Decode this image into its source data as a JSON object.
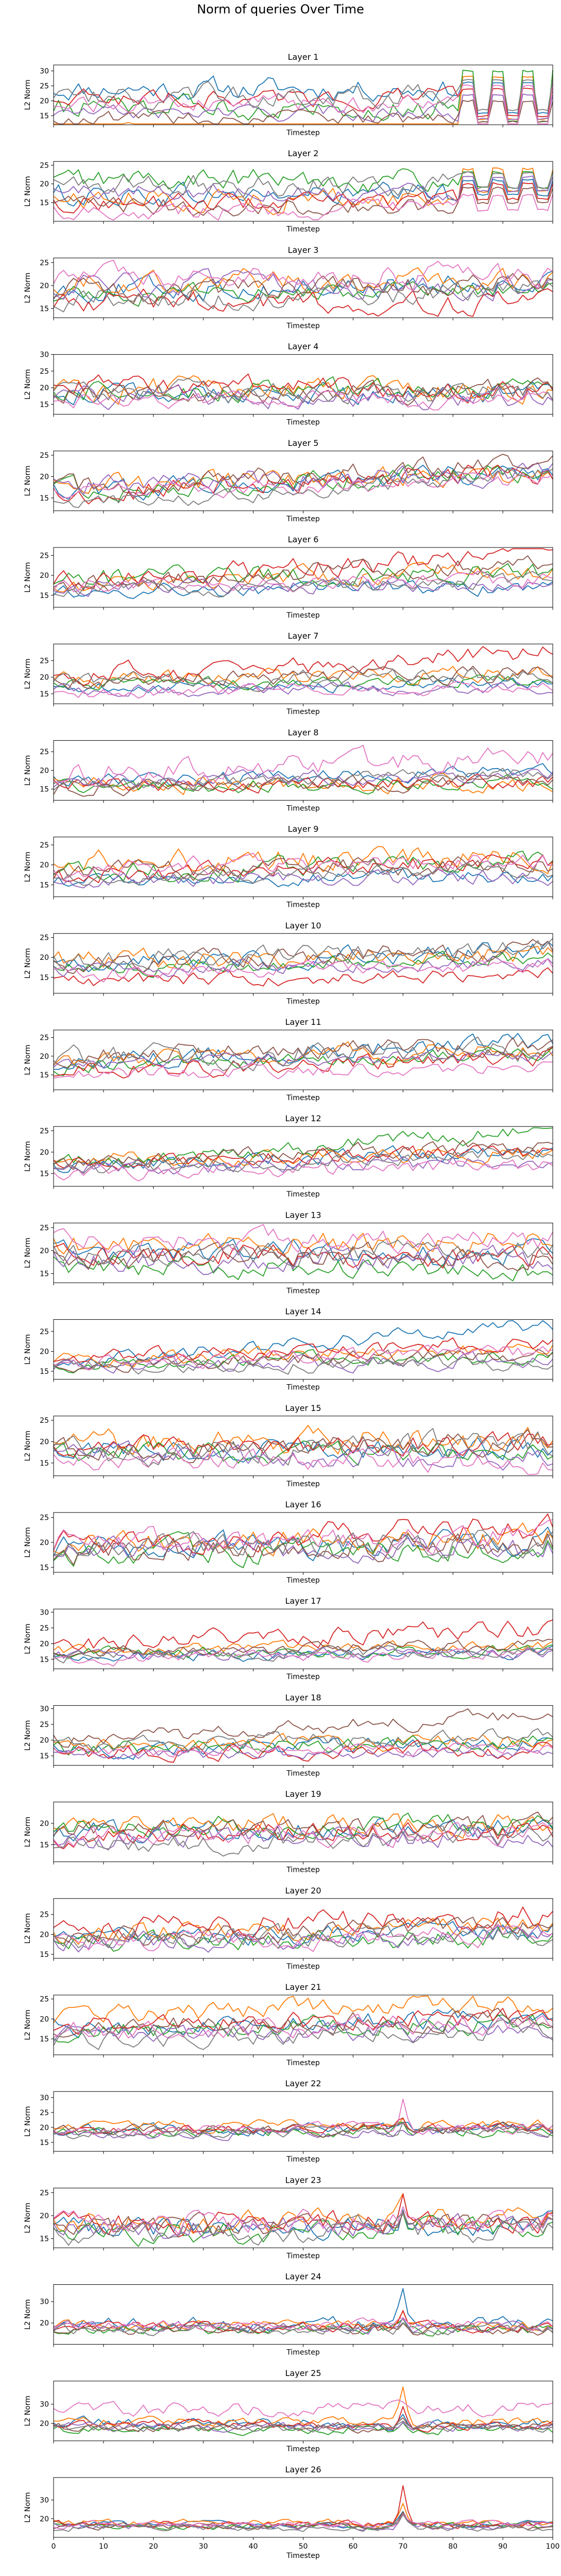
{
  "figure": {
    "suptitle": "Norm of queries Over Time",
    "xlabel": "Timestep",
    "ylabel": "L2 Norm"
  },
  "colors": [
    "#1f77b4",
    "#ff7f0e",
    "#2ca02c",
    "#d62728",
    "#9467bd",
    "#8c564b",
    "#e377c2",
    "#7f7f7f"
  ],
  "chart_data": [
    {
      "type": "line",
      "title": "Layer 1",
      "xlabel": "Timestep",
      "ylabel": "L2 Norm",
      "xlim": [
        0,
        100
      ],
      "ylim": [
        12,
        32
      ],
      "yticks": [
        15,
        20,
        25,
        30
      ],
      "base": [
        24,
        10,
        18,
        21,
        16,
        14,
        19,
        22
      ],
      "amp": [
        3,
        2,
        3,
        2.5,
        2,
        2,
        2.5,
        3
      ],
      "late": {
        "start": 82,
        "period": 6,
        "high": [
          26,
          28,
          30,
          24,
          22,
          20,
          25,
          27
        ],
        "low": [
          16,
          14,
          13,
          15,
          14,
          13,
          12,
          17
        ]
      }
    },
    {
      "type": "line",
      "title": "Layer 2",
      "xlabel": "Timestep",
      "ylabel": "L2 Norm",
      "xlim": [
        0,
        100
      ],
      "ylim": [
        10,
        26
      ],
      "yticks": [
        15,
        20,
        25
      ],
      "base": [
        17,
        16,
        21,
        15,
        18,
        14,
        13,
        20
      ],
      "amp": [
        2.5,
        2.5,
        2.5,
        2,
        2,
        2,
        2,
        2.5
      ],
      "late": {
        "start": 82,
        "period": 6,
        "high": [
          21,
          24,
          23,
          20,
          22,
          19,
          17,
          23
        ],
        "low": [
          17,
          18,
          19,
          16,
          18,
          15,
          13,
          19
        ]
      }
    },
    {
      "type": "line",
      "title": "Layer 3",
      "xlabel": "Timestep",
      "ylabel": "L2 Norm",
      "xlim": [
        0,
        100
      ],
      "ylim": [
        13,
        26
      ],
      "yticks": [
        15,
        20,
        25
      ],
      "base": [
        19,
        21,
        18,
        17,
        20,
        19,
        22,
        17
      ],
      "amp": [
        2,
        2,
        1.5,
        2,
        2,
        2,
        2,
        2
      ],
      "trend": [
        1,
        0,
        1,
        -1,
        0,
        1,
        0,
        2
      ]
    },
    {
      "type": "line",
      "title": "Layer 4",
      "xlabel": "Timestep",
      "ylabel": "L2 Norm",
      "xlim": [
        0,
        100
      ],
      "ylim": [
        12,
        30
      ],
      "yticks": [
        15,
        20,
        25,
        30
      ],
      "base": [
        18,
        20,
        19,
        21,
        17,
        18,
        16,
        19
      ],
      "amp": [
        2.5,
        3,
        2.5,
        2.5,
        2.5,
        2.5,
        2,
        2.5
      ],
      "trend": [
        0,
        -1,
        0,
        -2,
        0,
        1,
        0,
        -1
      ]
    },
    {
      "type": "line",
      "title": "Layer 5",
      "xlabel": "Timestep",
      "ylabel": "L2 Norm",
      "xlim": [
        0,
        100
      ],
      "ylim": [
        12,
        26
      ],
      "yticks": [
        15,
        20,
        25
      ],
      "base": [
        17,
        18,
        17,
        16,
        18,
        17,
        16,
        13
      ],
      "amp": [
        2,
        2,
        2,
        2,
        2,
        2,
        1.5,
        1.5
      ],
      "trend": [
        4,
        3,
        4,
        5,
        3,
        6,
        3,
        8
      ]
    },
    {
      "type": "line",
      "title": "Layer 6",
      "xlabel": "Timestep",
      "ylabel": "L2 Norm",
      "xlim": [
        0,
        100
      ],
      "ylim": [
        12,
        27
      ],
      "yticks": [
        15,
        20,
        25
      ],
      "base": [
        16,
        18,
        19,
        19,
        17,
        18,
        17,
        16
      ],
      "amp": [
        1.5,
        2,
        2,
        2,
        1.5,
        2,
        1.5,
        1.5
      ],
      "trend": [
        1,
        3,
        2,
        6,
        1,
        5,
        2,
        3
      ]
    },
    {
      "type": "line",
      "title": "Layer 7",
      "xlabel": "Timestep",
      "ylabel": "L2 Norm",
      "xlim": [
        0,
        100
      ],
      "ylim": [
        12,
        30
      ],
      "yticks": [
        15,
        20,
        25
      ],
      "base": [
        17,
        19,
        18,
        20,
        16,
        19,
        15,
        18
      ],
      "amp": [
        1.5,
        2,
        1.5,
        2.5,
        1.5,
        2,
        1.5,
        2
      ],
      "trend": [
        1,
        2,
        1,
        8,
        1,
        2,
        2,
        3
      ]
    },
    {
      "type": "line",
      "title": "Layer 8",
      "xlabel": "Timestep",
      "ylabel": "L2 Norm",
      "xlim": [
        0,
        100
      ],
      "ylim": [
        12,
        28
      ],
      "yticks": [
        15,
        20,
        25
      ],
      "base": [
        17,
        16,
        15,
        16,
        17,
        15,
        19,
        16
      ],
      "amp": [
        1.5,
        2,
        1.5,
        1.5,
        1.5,
        1.5,
        2.5,
        1.5
      ],
      "trend": [
        3,
        1,
        2,
        1,
        2,
        2,
        5,
        3
      ]
    },
    {
      "type": "line",
      "title": "Layer 9",
      "xlabel": "Timestep",
      "ylabel": "L2 Norm",
      "xlim": [
        0,
        100
      ],
      "ylim": [
        12,
        27
      ],
      "yticks": [
        15,
        20,
        25
      ],
      "base": [
        16,
        21,
        18,
        17,
        16,
        18,
        19,
        17
      ],
      "amp": [
        1.5,
        2.5,
        2,
        2,
        1.5,
        2,
        2,
        1.5
      ],
      "trend": [
        1,
        1,
        3,
        4,
        1,
        2,
        2,
        2
      ]
    },
    {
      "type": "line",
      "title": "Layer 10",
      "xlabel": "Timestep",
      "ylabel": "L2 Norm",
      "xlim": [
        0,
        100
      ],
      "ylim": [
        11,
        26
      ],
      "yticks": [
        15,
        20,
        25
      ],
      "base": [
        18,
        19,
        17,
        14,
        17,
        18,
        16,
        19
      ],
      "amp": [
        2,
        2,
        1.5,
        1.5,
        1.5,
        2,
        1.5,
        2
      ],
      "trend": [
        4,
        2,
        3,
        2,
        2,
        4,
        2,
        3
      ]
    },
    {
      "type": "line",
      "title": "Layer 11",
      "xlabel": "Timestep",
      "ylabel": "L2 Norm",
      "xlim": [
        0,
        100
      ],
      "ylim": [
        11,
        27
      ],
      "yticks": [
        15,
        20,
        25
      ],
      "base": [
        18,
        19,
        17,
        16,
        18,
        20,
        15,
        19
      ],
      "amp": [
        2,
        2,
        1.5,
        2,
        1.5,
        2,
        1.5,
        2.5
      ],
      "trend": [
        6,
        3,
        4,
        4,
        2,
        3,
        2,
        3
      ]
    },
    {
      "type": "line",
      "title": "Layer 12",
      "xlabel": "Timestep",
      "ylabel": "L2 Norm",
      "xlim": [
        0,
        100
      ],
      "ylim": [
        12,
        26
      ],
      "yticks": [
        15,
        20,
        25
      ],
      "base": [
        17,
        18,
        17,
        18,
        16,
        17,
        15,
        16
      ],
      "amp": [
        1.5,
        1.5,
        1.5,
        1.5,
        1.5,
        1.5,
        1.5,
        1.5
      ],
      "trend": [
        3,
        2,
        8,
        2,
        2,
        5,
        2,
        4
      ]
    },
    {
      "type": "line",
      "title": "Layer 13",
      "xlabel": "Timestep",
      "ylabel": "L2 Norm",
      "xlim": [
        0,
        100
      ],
      "ylim": [
        13,
        26
      ],
      "yticks": [
        15,
        20,
        25
      ],
      "base": [
        20,
        21,
        17,
        19,
        18,
        18,
        22,
        19
      ],
      "amp": [
        2,
        2,
        2,
        2,
        2,
        2,
        2,
        2
      ],
      "trend": [
        -1,
        1,
        -1,
        0,
        0,
        1,
        0,
        1
      ]
    },
    {
      "type": "line",
      "title": "Layer 14",
      "xlabel": "Timestep",
      "ylabel": "L2 Norm",
      "xlim": [
        0,
        100
      ],
      "ylim": [
        13,
        28
      ],
      "yticks": [
        15,
        20,
        25
      ],
      "base": [
        17,
        18,
        17,
        18,
        16,
        17,
        17,
        16
      ],
      "amp": [
        1.5,
        1.5,
        1.5,
        1.5,
        1.5,
        1.5,
        1.5,
        1.5
      ],
      "trend": [
        10,
        3,
        2,
        4,
        2,
        2,
        3,
        1
      ]
    },
    {
      "type": "line",
      "title": "Layer 15",
      "xlabel": "Timestep",
      "ylabel": "L2 Norm",
      "xlim": [
        0,
        100
      ],
      "ylim": [
        12,
        26
      ],
      "yticks": [
        15,
        20,
        25
      ],
      "base": [
        18,
        19,
        17,
        18,
        17,
        18,
        16,
        18
      ],
      "amp": [
        2,
        2.5,
        2,
        2,
        2,
        2,
        2,
        2.5
      ],
      "trend": [
        0,
        2,
        0,
        2,
        -1,
        2,
        -1,
        1
      ]
    },
    {
      "type": "line",
      "title": "Layer 16",
      "xlabel": "Timestep",
      "ylabel": "L2 Norm",
      "xlim": [
        0,
        100
      ],
      "ylim": [
        14,
        26
      ],
      "yticks": [
        15,
        20,
        25
      ],
      "base": [
        19,
        20,
        18,
        20,
        19,
        18,
        20,
        19
      ],
      "amp": [
        2,
        2,
        2,
        2,
        2,
        2,
        2,
        2
      ],
      "trend": [
        1,
        1,
        1,
        3,
        0,
        2,
        1,
        1
      ]
    },
    {
      "type": "line",
      "title": "Layer 17",
      "xlabel": "Timestep",
      "ylabel": "L2 Norm",
      "xlim": [
        0,
        100
      ],
      "ylim": [
        12,
        31
      ],
      "yticks": [
        15,
        20,
        25,
        30
      ],
      "base": [
        16,
        18,
        17,
        20,
        16,
        17,
        15,
        16
      ],
      "amp": [
        1.5,
        1.5,
        1.5,
        2.5,
        1.5,
        1.5,
        1.5,
        1.5
      ],
      "trend": [
        1,
        1,
        1,
        5,
        1,
        3,
        2,
        2
      ]
    },
    {
      "type": "line",
      "title": "Layer 18",
      "xlabel": "Timestep",
      "ylabel": "L2 Norm",
      "xlim": [
        0,
        100
      ],
      "ylim": [
        12,
        31
      ],
      "yticks": [
        15,
        20,
        25,
        30
      ],
      "base": [
        17,
        18,
        17,
        16,
        15,
        20,
        16,
        18
      ],
      "amp": [
        2,
        2,
        2,
        2,
        1.5,
        2,
        1.5,
        2
      ],
      "trend": [
        2,
        2,
        3,
        1,
        1,
        8,
        2,
        4
      ]
    },
    {
      "type": "line",
      "title": "Layer 19",
      "xlabel": "Timestep",
      "ylabel": "L2 Norm",
      "xlim": [
        0,
        100
      ],
      "ylim": [
        11,
        25
      ],
      "yticks": [
        15,
        20
      ],
      "base": [
        18,
        20,
        19,
        17,
        16,
        18,
        17,
        15
      ],
      "amp": [
        2,
        2,
        2,
        2,
        2,
        2,
        2,
        2
      ],
      "trend": [
        1,
        0,
        1,
        1,
        1,
        1,
        1,
        2
      ]
    },
    {
      "type": "line",
      "title": "Layer 20",
      "xlabel": "Timestep",
      "ylabel": "L2 Norm",
      "xlim": [
        0,
        100
      ],
      "ylim": [
        14,
        29
      ],
      "yticks": [
        15,
        20,
        25
      ],
      "base": [
        19,
        20,
        18,
        21,
        18,
        19,
        18,
        19
      ],
      "amp": [
        2,
        2,
        2,
        2.5,
        2,
        2,
        2,
        2
      ],
      "trend": [
        2,
        2,
        1,
        4,
        2,
        3,
        2,
        1
      ]
    },
    {
      "type": "line",
      "title": "Layer 21",
      "xlabel": "Timestep",
      "ylabel": "L2 Norm",
      "xlim": [
        0,
        100
      ],
      "ylim": [
        11,
        26
      ],
      "yticks": [
        15,
        20,
        25
      ],
      "base": [
        18,
        21,
        17,
        19,
        16,
        18,
        17,
        15
      ],
      "amp": [
        2,
        2,
        2,
        2,
        2,
        2,
        2,
        2
      ],
      "trend": [
        2,
        3,
        2,
        1,
        1,
        2,
        2,
        2
      ]
    },
    {
      "type": "line",
      "title": "Layer 22",
      "xlabel": "Timestep",
      "ylabel": "L2 Norm",
      "xlim": [
        0,
        100
      ],
      "ylim": [
        12,
        32
      ],
      "yticks": [
        15,
        20,
        25,
        30
      ],
      "base": [
        19,
        20,
        18,
        19,
        18,
        19,
        19,
        18
      ],
      "amp": [
        1.5,
        1.5,
        1.5,
        1.5,
        1.5,
        1.5,
        1.5,
        1.5
      ],
      "trend": [
        1,
        1,
        1,
        1,
        1,
        1,
        1,
        1
      ],
      "spike": {
        "x": 70,
        "h": [
          3,
          4,
          3,
          4,
          2,
          3,
          9,
          3
        ]
      }
    },
    {
      "type": "line",
      "title": "Layer 23",
      "xlabel": "Timestep",
      "ylabel": "L2 Norm",
      "xlim": [
        0,
        100
      ],
      "ylim": [
        13,
        26
      ],
      "yticks": [
        15,
        20,
        25
      ],
      "base": [
        17,
        18,
        16,
        18,
        17,
        17,
        18,
        16
      ],
      "amp": [
        2,
        2,
        2,
        2,
        2,
        2,
        2,
        2
      ],
      "trend": [
        1,
        1,
        1,
        1,
        1,
        1,
        1,
        1
      ],
      "spike": {
        "x": 70,
        "h": [
          3,
          3,
          2,
          5,
          2,
          3,
          3,
          2
        ]
      }
    },
    {
      "type": "line",
      "title": "Layer 24",
      "xlabel": "Timestep",
      "ylabel": "L2 Norm",
      "xlim": [
        0,
        100
      ],
      "ylim": [
        10,
        38
      ],
      "yticks": [
        20,
        30
      ],
      "base": [
        20,
        19,
        17,
        18,
        18,
        17,
        19,
        17
      ],
      "amp": [
        2.5,
        2,
        2,
        2,
        2,
        2,
        2,
        2
      ],
      "trend": [
        0,
        0,
        0,
        0,
        0,
        0,
        0,
        0
      ],
      "spike": {
        "x": 70,
        "h": [
          14,
          6,
          4,
          8,
          5,
          4,
          3,
          4
        ]
      }
    },
    {
      "type": "line",
      "title": "Layer 25",
      "xlabel": "Timestep",
      "ylabel": "L2 Norm",
      "xlim": [
        0,
        100
      ],
      "ylim": [
        11,
        42
      ],
      "yticks": [
        20,
        30
      ],
      "base": [
        20,
        21,
        17,
        19,
        18,
        18,
        27,
        18
      ],
      "amp": [
        2.5,
        2,
        2,
        2,
        2,
        2,
        3,
        2
      ],
      "trend": [
        0,
        0,
        0,
        0,
        0,
        0,
        1,
        0
      ],
      "spike": {
        "x": 70,
        "h": [
          6,
          18,
          5,
          12,
          5,
          6,
          4,
          5
        ]
      }
    },
    {
      "type": "line",
      "title": "Layer 26",
      "xlabel": "Timestep",
      "ylabel": "L2 Norm",
      "xlim": [
        0,
        100
      ],
      "ylim": [
        10,
        42
      ],
      "yticks": [
        20,
        30
      ],
      "base": [
        17,
        18,
        16,
        17,
        16,
        16,
        17,
        15
      ],
      "amp": [
        1.5,
        1.5,
        1.5,
        1.5,
        1.5,
        1.5,
        1.5,
        1.5
      ],
      "trend": [
        0,
        0,
        0,
        0,
        0,
        0,
        0,
        0
      ],
      "spike": {
        "x": 70,
        "h": [
          8,
          12,
          6,
          20,
          5,
          6,
          5,
          6
        ]
      }
    }
  ],
  "xticks": [
    0,
    10,
    20,
    30,
    40,
    50,
    60,
    70,
    80,
    90,
    100
  ]
}
